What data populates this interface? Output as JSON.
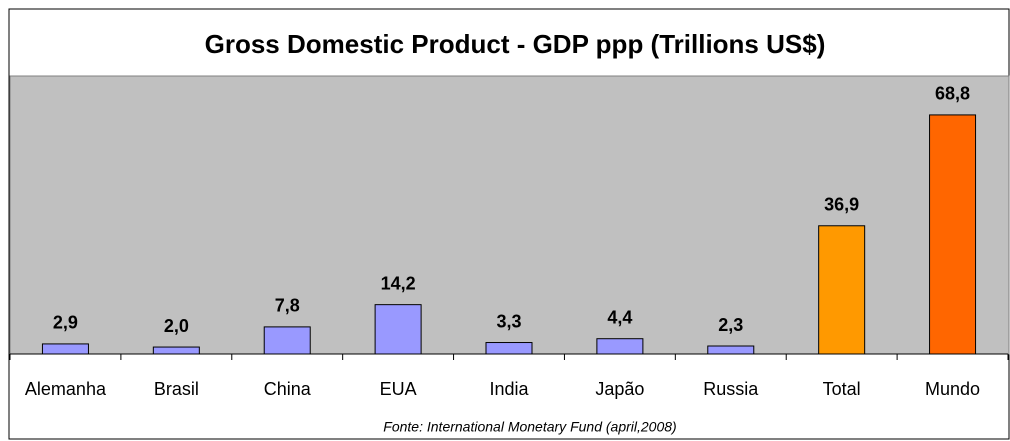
{
  "chart_data": {
    "type": "bar",
    "title": "Gross Domestic Product - GDP ppp (Trillions US$)",
    "categories": [
      "Alemanha",
      "Brasil",
      "China",
      "EUA",
      "India",
      "Japão",
      "Russia",
      "Total",
      "Mundo"
    ],
    "values": [
      2.9,
      2.0,
      7.8,
      14.2,
      3.3,
      4.4,
      2.3,
      36.9,
      68.8
    ],
    "value_labels": [
      "2,9",
      "2,0",
      "7,8",
      "14,2",
      "3,3",
      "4,4",
      "2,3",
      "36,9",
      "68,8"
    ],
    "colors": [
      "#9999ff",
      "#9999ff",
      "#9999ff",
      "#9999ff",
      "#9999ff",
      "#9999ff",
      "#9999ff",
      "#ff9900",
      "#ff6600"
    ],
    "ylim": [
      0,
      80
    ],
    "source": "Fonte: International Monetary Fund (april,2008)"
  }
}
